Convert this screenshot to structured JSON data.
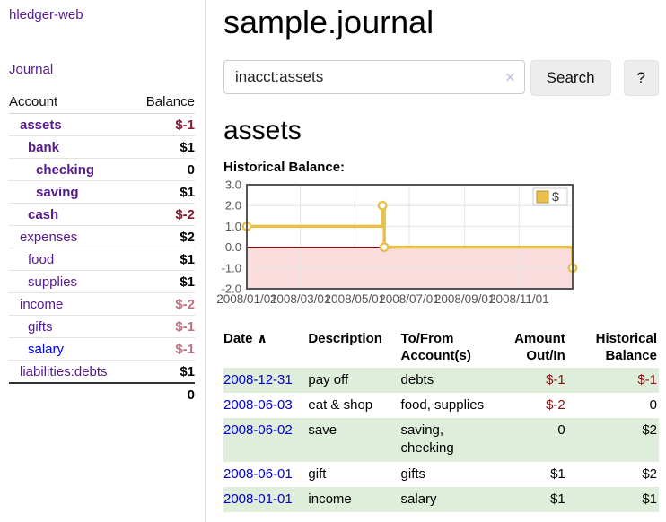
{
  "colors": {
    "purple": "#551a8b",
    "link_blue": "#0000cc",
    "link_bright": "#0000ee",
    "negative_strong": "#87182f",
    "negative_soft": "#c1707f",
    "negative_table": "#8b1111",
    "row_green": "#dfeeda"
  },
  "sidebar": {
    "brand": "hledger-web",
    "journal_link": "Journal",
    "accounts_table": {
      "header": {
        "account": "Account",
        "balance": "Balance"
      },
      "rows": [
        {
          "name": "assets",
          "balance": "$-1",
          "indent": 0,
          "bold": true,
          "neg": "strong"
        },
        {
          "name": "bank",
          "balance": "$1",
          "indent": 1,
          "bold": true
        },
        {
          "name": "checking",
          "balance": "0",
          "indent": 2,
          "bold": true
        },
        {
          "name": "saving",
          "balance": "$1",
          "indent": 2,
          "bold": true
        },
        {
          "name": "cash",
          "balance": "$-2",
          "indent": 1,
          "bold": true,
          "neg": "strong"
        },
        {
          "name": "expenses",
          "balance": "$2",
          "indent": 0
        },
        {
          "name": "food",
          "balance": "$1",
          "indent": 1
        },
        {
          "name": "supplies",
          "balance": "$1",
          "indent": 1
        },
        {
          "name": "income",
          "balance": "$-2",
          "indent": 0,
          "neg": "soft"
        },
        {
          "name": "gifts",
          "balance": "$-1",
          "indent": 1,
          "neg": "soft"
        },
        {
          "name": "salary",
          "balance": "$-1",
          "indent": 1,
          "neg": "soft",
          "blue": true
        },
        {
          "name": "liabilities:debts",
          "balance": "$1",
          "indent": 0
        }
      ],
      "total": "0"
    }
  },
  "main": {
    "title": "sample.journal",
    "search": {
      "value": "inacct:assets",
      "clear": "✕",
      "button_label": "Search",
      "help_label": "?"
    },
    "account_heading": "assets",
    "chart_title": "Historical Balance:",
    "register": {
      "headers": {
        "date": "Date",
        "sort_arrow": "∧",
        "description": "Description",
        "tofrom_line1": "To/From",
        "tofrom_line2": "Account(s)",
        "amount_line1": "Amount",
        "amount_line2": "Out/In",
        "balance_line1": "Historical",
        "balance_line2": "Balance"
      },
      "rows": [
        {
          "date": "2008-12-31",
          "description": "pay off",
          "accounts": "debts",
          "amount": "$-1",
          "balance": "$-1",
          "amount_negative": true,
          "balance_negative": true
        },
        {
          "date": "2008-06-03",
          "description": "eat & shop",
          "accounts": "food, supplies",
          "amount": "$-2",
          "balance": "0",
          "amount_negative": true,
          "balance_negative": false
        },
        {
          "date": "2008-06-02",
          "description": "save",
          "accounts": "saving, checking",
          "amount": "0",
          "balance": "$2",
          "amount_negative": false,
          "balance_negative": false
        },
        {
          "date": "2008-06-01",
          "description": "gift",
          "accounts": "gifts",
          "amount": "$1",
          "balance": "$2",
          "amount_negative": false,
          "balance_negative": false
        },
        {
          "date": "2008-01-01",
          "description": "income",
          "accounts": "salary",
          "amount": "$1",
          "balance": "$1",
          "amount_negative": false,
          "balance_negative": false
        }
      ]
    }
  },
  "chart_data": {
    "type": "line-step",
    "title": "Historical Balance",
    "series": [
      {
        "name": "$",
        "points": [
          [
            "2008-01-01",
            1
          ],
          [
            "2008-06-01",
            2
          ],
          [
            "2008-06-03",
            0
          ],
          [
            "2008-12-31",
            -1
          ]
        ]
      }
    ],
    "xlim": [
      "2008-01-01",
      "2008-12-31"
    ],
    "ylim": [
      -2,
      3
    ],
    "yticks": [
      {
        "label": "3.0",
        "value": 3
      },
      {
        "label": "2.0",
        "value": 2
      },
      {
        "label": "1.0",
        "value": 1
      },
      {
        "label": "0.0",
        "value": 0
      },
      {
        "label": "-1.0",
        "value": -1
      },
      {
        "label": "-2.0",
        "value": -2
      }
    ],
    "xticks": [
      {
        "label": "2008/01/01",
        "date": "2008-01-01"
      },
      {
        "label": "2008/03/01",
        "date": "2008-03-01"
      },
      {
        "label": "2008/05/01",
        "date": "2008-05-01"
      },
      {
        "label": "2008/07/01",
        "date": "2008-07-01"
      },
      {
        "label": "2008/09/01",
        "date": "2008-09-01"
      },
      {
        "label": "2008/11/01",
        "date": "2008-11-01"
      }
    ],
    "legend": {
      "label": "$",
      "position": "top-right"
    },
    "grid": true,
    "colors": {
      "line": "#e8c14a",
      "marker_fill": "#ffffff",
      "legend_square": "#e8c04a",
      "legend_square_border": "#b8952f",
      "negative_region": "#fbdcdc",
      "zero_line": "#8b0000",
      "grid": "#e4e4e4",
      "border": "#555555",
      "tick_text": "#555555"
    }
  }
}
